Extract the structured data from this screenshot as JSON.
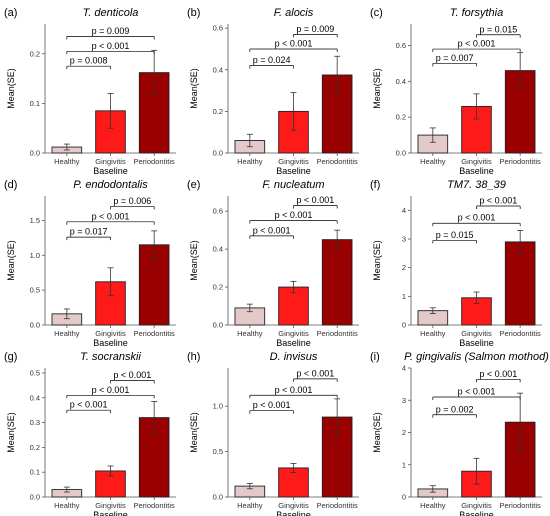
{
  "colors": {
    "Healthy": "#e3c9c9",
    "Gingivitis": "#ff1a1a",
    "Periodontitis": "#990000",
    "Gingivitis_label": "#e0218a",
    "error_bar": "#333333",
    "bracket": "#000000"
  },
  "chart_data": [
    {
      "panel": "(a)",
      "title": "T. denticola",
      "type": "bar",
      "categories": [
        "Healthy",
        "Gingivitis",
        "Periodontitis"
      ],
      "values": [
        0.012,
        0.085,
        0.162
      ],
      "errors": [
        0.006,
        0.035,
        0.045
      ],
      "ylim": [
        0,
        0.26
      ],
      "yticks": [
        0,
        0.1,
        0.2
      ],
      "ytick_labels": [
        "0.0",
        "0.1",
        "0.2"
      ],
      "ylabel": "Mean(SE)",
      "xlabel": "Baseline",
      "comparisons": [
        {
          "groups": [
            0,
            2
          ],
          "label": "p = 0.009",
          "y": 0.235
        },
        {
          "groups": [
            0,
            2
          ],
          "label": "p < 0.001",
          "y": 0.205
        },
        {
          "groups": [
            0,
            1
          ],
          "label": "p = 0.008",
          "y": 0.175
        }
      ]
    },
    {
      "panel": "(b)",
      "title": "F. alocis",
      "type": "bar",
      "categories": [
        "Healthy",
        "Gingivitis",
        "Periodontitis"
      ],
      "values": [
        0.06,
        0.2,
        0.375
      ],
      "errors": [
        0.03,
        0.09,
        0.09
      ],
      "ylim": [
        0,
        0.62
      ],
      "yticks": [
        0,
        0.2,
        0.4,
        0.6
      ],
      "ytick_labels": [
        "0.0",
        "0.2",
        "0.4",
        "0.6"
      ],
      "ylabel": "Mean(SE)",
      "xlabel": "Baseline",
      "comparisons": [
        {
          "groups": [
            1,
            2
          ],
          "label": "p = 0.009",
          "y": 0.57
        },
        {
          "groups": [
            0,
            2
          ],
          "label": "p < 0.001",
          "y": 0.5
        },
        {
          "groups": [
            0,
            1
          ],
          "label": "p = 0.024",
          "y": 0.42
        }
      ]
    },
    {
      "panel": "(c)",
      "title": "T. forsythia",
      "type": "bar",
      "categories": [
        "Healthy",
        "Gingivitis",
        "Periodontitis"
      ],
      "values": [
        0.1,
        0.26,
        0.46
      ],
      "errors": [
        0.04,
        0.07,
        0.1
      ],
      "ylim": [
        0,
        0.72
      ],
      "yticks": [
        0,
        0.2,
        0.4,
        0.6
      ],
      "ytick_labels": [
        "0.0",
        "0.2",
        "0.4",
        "0.6"
      ],
      "ylabel": "Mean(SE)",
      "xlabel": "Baseline",
      "comparisons": [
        {
          "groups": [
            1,
            2
          ],
          "label": "p = 0.015",
          "y": 0.66
        },
        {
          "groups": [
            0,
            2
          ],
          "label": "p < 0.001",
          "y": 0.58
        },
        {
          "groups": [
            0,
            1
          ],
          "label": "p = 0.007",
          "y": 0.5
        }
      ]
    },
    {
      "panel": "(d)",
      "title": "P. endodontalis",
      "type": "bar",
      "categories": [
        "Healthy",
        "Gingivitis",
        "Periodontitis"
      ],
      "values": [
        0.16,
        0.62,
        1.15
      ],
      "errors": [
        0.07,
        0.2,
        0.2
      ],
      "ylim": [
        0,
        1.85
      ],
      "yticks": [
        0,
        0.5,
        1.0,
        1.5
      ],
      "ytick_labels": [
        "0.0",
        "0.5",
        "1.0",
        "1.5"
      ],
      "ylabel": "Mean(SE)",
      "xlabel": "Baseline",
      "comparisons": [
        {
          "groups": [
            1,
            2
          ],
          "label": "p = 0.006",
          "y": 1.7
        },
        {
          "groups": [
            0,
            2
          ],
          "label": "p < 0.001",
          "y": 1.48
        },
        {
          "groups": [
            0,
            1
          ],
          "label": "p = 0.017",
          "y": 1.26
        }
      ]
    },
    {
      "panel": "(e)",
      "title": "F. nucleatum",
      "type": "bar",
      "categories": [
        "Healthy",
        "Gingivitis",
        "Periodontitis"
      ],
      "values": [
        0.09,
        0.2,
        0.45
      ],
      "errors": [
        0.02,
        0.03,
        0.05
      ],
      "ylim": [
        0,
        0.68
      ],
      "yticks": [
        0,
        0.2,
        0.4,
        0.6
      ],
      "ytick_labels": [
        "0.0",
        "0.2",
        "0.4",
        "0.6"
      ],
      "ylabel": "Mean(SE)",
      "xlabel": "Baseline",
      "comparisons": [
        {
          "groups": [
            1,
            2
          ],
          "label": "p < 0.001",
          "y": 0.63
        },
        {
          "groups": [
            0,
            2
          ],
          "label": "p < 0.001",
          "y": 0.55
        },
        {
          "groups": [
            0,
            1
          ],
          "label": "p < 0.001",
          "y": 0.47
        }
      ]
    },
    {
      "panel": "(f)",
      "title": "TM7. 38_39",
      "type": "bar",
      "categories": [
        "Healthy",
        "Gingivitis",
        "Periodontitis"
      ],
      "values": [
        0.5,
        0.95,
        2.9
      ],
      "errors": [
        0.1,
        0.2,
        0.4
      ],
      "ylim": [
        0,
        4.5
      ],
      "yticks": [
        0,
        1,
        2,
        3,
        4
      ],
      "ytick_labels": [
        "0",
        "1",
        "2",
        "3",
        "4"
      ],
      "ylabel": "Mean(SE)",
      "xlabel": "Baseline",
      "comparisons": [
        {
          "groups": [
            1,
            2
          ],
          "label": "p < 0.001",
          "y": 4.15
        },
        {
          "groups": [
            0,
            2
          ],
          "label": "p < 0.001",
          "y": 3.55
        },
        {
          "groups": [
            0,
            1
          ],
          "label": "p = 0.015",
          "y": 2.95
        }
      ]
    },
    {
      "panel": "(g)",
      "title": "T. socranskii",
      "type": "bar",
      "categories": [
        "Healthy",
        "Gingivitis",
        "Periodontitis"
      ],
      "values": [
        0.03,
        0.105,
        0.32
      ],
      "errors": [
        0.01,
        0.02,
        0.065
      ],
      "ylim": [
        0,
        0.52
      ],
      "yticks": [
        0,
        0.1,
        0.2,
        0.3,
        0.4,
        0.5
      ],
      "ytick_labels": [
        "0.0",
        "0.1",
        "0.2",
        "0.3",
        "0.4",
        "0.5"
      ],
      "ylabel": "Mean(SE)",
      "xlabel": "Baseline",
      "comparisons": [
        {
          "groups": [
            1,
            2
          ],
          "label": "p < 0.001",
          "y": 0.47
        },
        {
          "groups": [
            0,
            2
          ],
          "label": "p < 0.001",
          "y": 0.41
        },
        {
          "groups": [
            0,
            1
          ],
          "label": "p < 0.001",
          "y": 0.35
        }
      ]
    },
    {
      "panel": "(h)",
      "title": "D. invisus",
      "type": "bar",
      "categories": [
        "Healthy",
        "Gingivitis",
        "Periodontitis"
      ],
      "values": [
        0.12,
        0.32,
        0.88
      ],
      "errors": [
        0.03,
        0.05,
        0.2
      ],
      "ylim": [
        0,
        1.42
      ],
      "yticks": [
        0,
        0.5,
        1.0
      ],
      "ytick_labels": [
        "0.0",
        "0.5",
        "1.0"
      ],
      "ylabel": "Mean(SE)",
      "xlabel": "Baseline",
      "comparisons": [
        {
          "groups": [
            1,
            2
          ],
          "label": "p < 0.001",
          "y": 1.3
        },
        {
          "groups": [
            0,
            2
          ],
          "label": "p < 0.001",
          "y": 1.12
        },
        {
          "groups": [
            0,
            1
          ],
          "label": "p < 0.001",
          "y": 0.95
        }
      ]
    },
    {
      "panel": "(i)",
      "title": "P. gingivalis (Salmon mothod)",
      "type": "bar",
      "categories": [
        "Healthy",
        "Gingivitis",
        "Periodontitis"
      ],
      "values": [
        0.25,
        0.8,
        2.32
      ],
      "errors": [
        0.1,
        0.4,
        0.9
      ],
      "ylim": [
        0,
        4.0
      ],
      "yticks": [
        0,
        1,
        2,
        3,
        4
      ],
      "ytick_labels": [
        "0",
        "1",
        "2",
        "3",
        "4"
      ],
      "ylabel": "Mean(SE)",
      "xlabel": "Baseline",
      "comparisons": [
        {
          "groups": [
            1,
            2
          ],
          "label": "p < 0.001",
          "y": 3.65
        },
        {
          "groups": [
            0,
            2
          ],
          "label": "p < 0.001",
          "y": 3.1
        },
        {
          "groups": [
            0,
            1
          ],
          "label": "p = 0.002",
          "y": 2.55
        }
      ]
    }
  ]
}
